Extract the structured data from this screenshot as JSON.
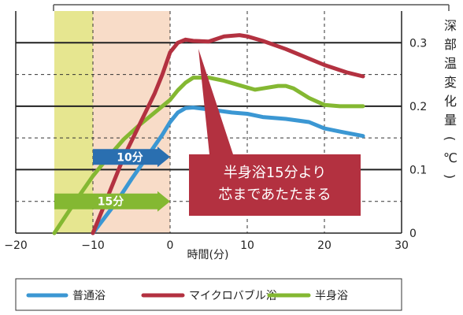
{
  "chart_data": {
    "type": "line",
    "xlabel": "時間(分)",
    "ylabel": "深部温変化量(℃)",
    "xlim": [
      -20,
      30
    ],
    "ylim": [
      0,
      0.35
    ],
    "x_ticks": [
      "−20",
      "−10",
      "0",
      "10",
      "20",
      "30"
    ],
    "y_ticks": [
      "0",
      "0.1",
      "0.2",
      "0.3"
    ],
    "grid": true,
    "legend_position": "bottom",
    "shaded_regions": [
      {
        "name": "15分",
        "from": -15,
        "to": 0,
        "color": "#e6e690"
      },
      {
        "name": "10分",
        "from": -10,
        "to": 0,
        "color": "#f8dcc8"
      }
    ],
    "arrows": [
      {
        "label": "10分",
        "from": -10,
        "to": 0,
        "y": 0.12,
        "color": "#2a6fb0"
      },
      {
        "label": "15分",
        "from": -15,
        "to": 0,
        "y": 0.05,
        "color": "#84b832"
      }
    ],
    "annotation": {
      "lines": [
        "半身浴15分より",
        "芯まであたたまる"
      ],
      "color": "#b33140"
    },
    "series": [
      {
        "name": "普通浴",
        "color": "#3b97d3",
        "x": [
          -10,
          -7,
          -5,
          -3,
          -1,
          0,
          1,
          2,
          3,
          5,
          8,
          10,
          12,
          15,
          18,
          20,
          22,
          25
        ],
        "y": [
          0.0,
          0.048,
          0.085,
          0.12,
          0.155,
          0.175,
          0.19,
          0.197,
          0.198,
          0.195,
          0.19,
          0.188,
          0.183,
          0.18,
          0.175,
          0.165,
          0.16,
          0.153
        ]
      },
      {
        "name": "マイクロバブル浴",
        "color": "#b33140",
        "x": [
          -10,
          -8,
          -6,
          -4,
          -2,
          -1,
          0,
          1,
          2,
          3,
          5,
          7,
          9,
          10,
          12,
          15,
          18,
          20,
          23,
          25
        ],
        "y": [
          0.0,
          0.06,
          0.12,
          0.17,
          0.22,
          0.25,
          0.285,
          0.3,
          0.305,
          0.303,
          0.302,
          0.31,
          0.312,
          0.31,
          0.303,
          0.29,
          0.275,
          0.265,
          0.253,
          0.247
        ]
      },
      {
        "name": "半身浴",
        "color": "#84b832",
        "x": [
          -15,
          -12,
          -10,
          -8,
          -6,
          -4,
          -2,
          0,
          1,
          2,
          3,
          5,
          7,
          9,
          11,
          12,
          14,
          15,
          16,
          18,
          20,
          22,
          25
        ],
        "y": [
          0.0,
          0.055,
          0.09,
          0.12,
          0.148,
          0.17,
          0.19,
          0.21,
          0.225,
          0.237,
          0.245,
          0.245,
          0.24,
          0.233,
          0.226,
          0.228,
          0.232,
          0.232,
          0.228,
          0.213,
          0.202,
          0.2,
          0.2
        ]
      }
    ]
  }
}
